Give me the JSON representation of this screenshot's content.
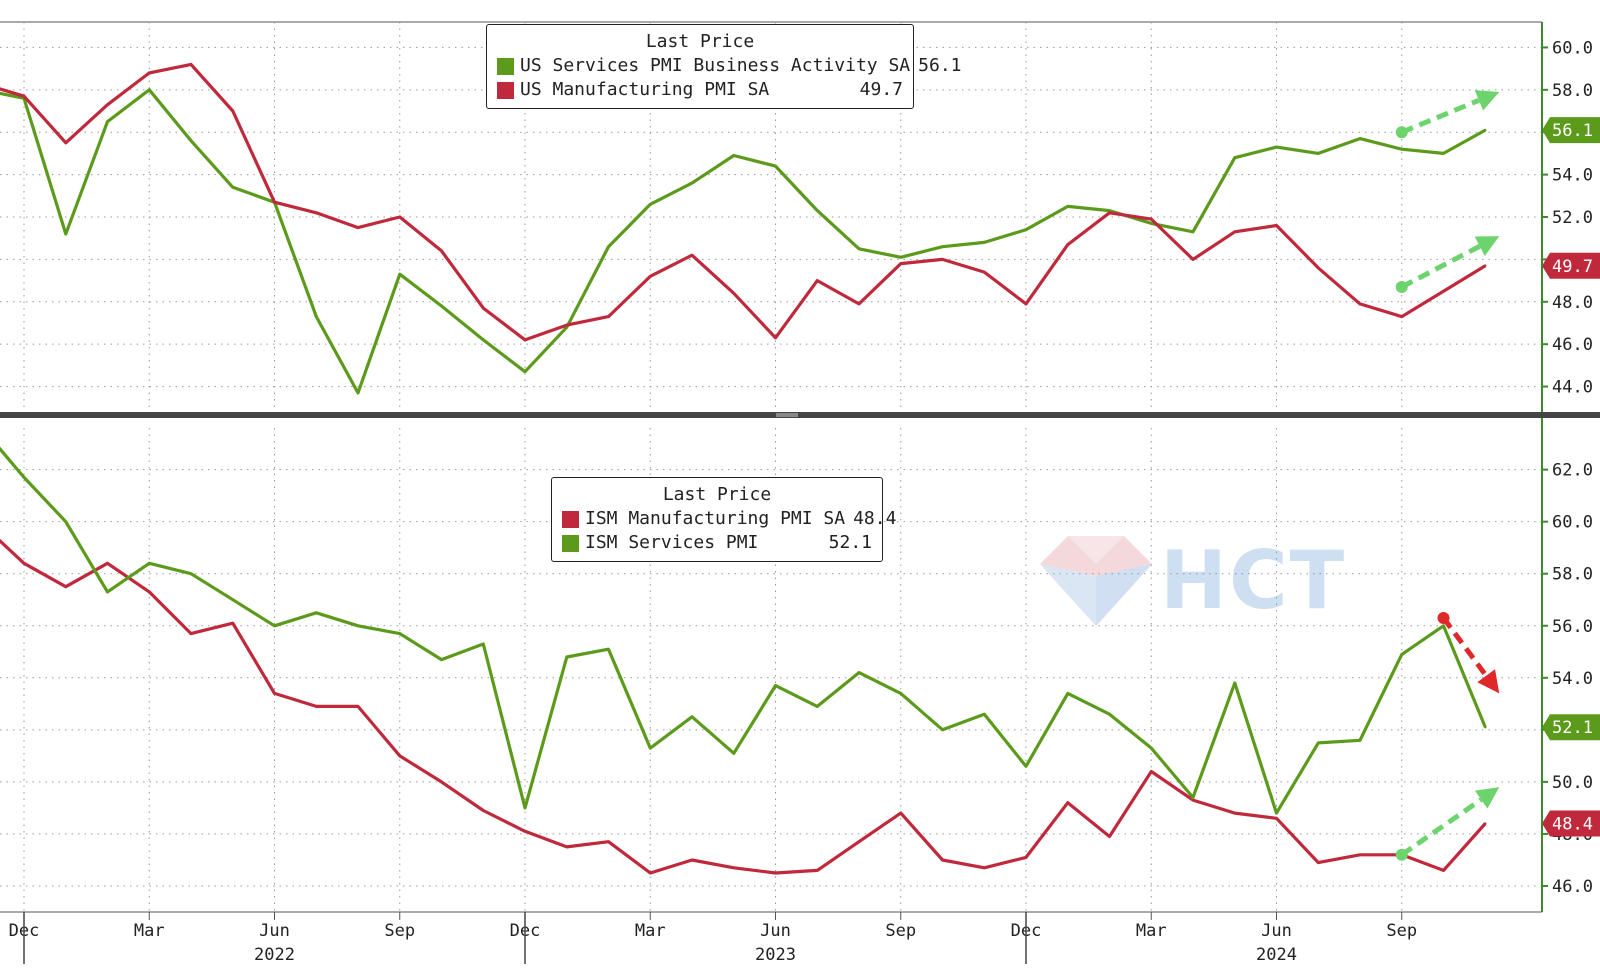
{
  "colors": {
    "green": "#5b9a1a",
    "red": "#c0283c",
    "arrow_green": "#6dd36d",
    "arrow_red": "#e0282a",
    "grid": "#9a9a9a",
    "axis": "#3c8a2c",
    "divider": "#444444"
  },
  "x_axis": {
    "months": [
      "Dec",
      "Mar",
      "Jun",
      "Sep",
      "Dec",
      "Mar",
      "Jun",
      "Sep",
      "Dec",
      "Mar",
      "Jun",
      "Sep"
    ],
    "years": [
      "2022",
      "2023",
      "2024"
    ]
  },
  "watermark": {
    "text": "HCT",
    "icon": "diamond-logo-icon"
  },
  "chart_data": [
    {
      "type": "line",
      "x_unit": "month",
      "x": [
        "2021-11",
        "2021-12",
        "2022-01",
        "2022-02",
        "2022-03",
        "2022-04",
        "2022-05",
        "2022-06",
        "2022-07",
        "2022-08",
        "2022-09",
        "2022-10",
        "2022-11",
        "2022-12",
        "2023-01",
        "2023-02",
        "2023-03",
        "2023-04",
        "2023-05",
        "2023-06",
        "2023-07",
        "2023-08",
        "2023-09",
        "2023-10",
        "2023-11",
        "2023-12",
        "2024-01",
        "2024-02",
        "2024-03",
        "2024-04",
        "2024-05",
        "2024-06",
        "2024-07",
        "2024-08",
        "2024-09",
        "2024-10",
        "2024-11"
      ],
      "series": [
        {
          "name": "US Services PMI Business Activity SA",
          "color_key": "green",
          "values": [
            58.0,
            57.6,
            51.2,
            56.5,
            58.0,
            55.6,
            53.4,
            52.7,
            47.3,
            43.7,
            49.3,
            47.8,
            46.2,
            44.7,
            46.8,
            50.6,
            52.6,
            53.6,
            54.9,
            54.4,
            52.3,
            50.5,
            50.1,
            50.6,
            50.8,
            51.4,
            52.5,
            52.3,
            51.7,
            51.3,
            54.8,
            55.3,
            55.0,
            55.7,
            55.2,
            55.0,
            56.1
          ],
          "last_price": "56.1"
        },
        {
          "name": "US Manufacturing PMI SA",
          "color_key": "red",
          "values": [
            58.3,
            57.7,
            55.5,
            57.3,
            58.8,
            59.2,
            57.0,
            52.7,
            52.2,
            51.5,
            52.0,
            50.4,
            47.7,
            46.2,
            46.9,
            47.3,
            49.2,
            50.2,
            48.4,
            46.3,
            49.0,
            47.9,
            49.8,
            50.0,
            49.4,
            47.9,
            50.7,
            52.2,
            51.9,
            50.0,
            51.3,
            51.6,
            49.6,
            47.9,
            47.3,
            48.5,
            49.7
          ],
          "last_price": "49.7"
        }
      ],
      "y_ticks": [
        "44.0",
        "46.0",
        "48.0",
        "50.0",
        "52.0",
        "54.0",
        "56.0",
        "58.0",
        "60.0"
      ],
      "ylim": [
        42.8,
        61.2
      ],
      "legend": {
        "title": "Last Price",
        "placement": "top-center",
        "entries": [
          {
            "label": "US Services PMI Business Activity SA",
            "value": "56.1",
            "color_key": "green"
          },
          {
            "label": "US Manufacturing PMI SA",
            "value": "49.7",
            "color_key": "red"
          }
        ]
      },
      "end_badges": [
        {
          "text": "56.1",
          "color_key": "green",
          "y": 56.1
        },
        {
          "text": "49.7",
          "color_key": "red",
          "y": 49.7
        }
      ],
      "annotations": [
        {
          "shape": "dashed-arrow",
          "color_key": "arrow_green",
          "from": [
            "2024-09",
            56.0
          ],
          "to": [
            "2024-11",
            57.9
          ]
        },
        {
          "shape": "dashed-arrow",
          "color_key": "arrow_green",
          "from": [
            "2024-09",
            48.7
          ],
          "to": [
            "2024-11",
            51.1
          ]
        }
      ]
    },
    {
      "type": "line",
      "x_unit": "month",
      "x": [
        "2021-11",
        "2021-12",
        "2022-01",
        "2022-02",
        "2022-03",
        "2022-04",
        "2022-05",
        "2022-06",
        "2022-07",
        "2022-08",
        "2022-09",
        "2022-10",
        "2022-11",
        "2022-12",
        "2023-01",
        "2023-02",
        "2023-03",
        "2023-04",
        "2023-05",
        "2023-06",
        "2023-07",
        "2023-08",
        "2023-09",
        "2023-10",
        "2023-11",
        "2023-12",
        "2024-01",
        "2024-02",
        "2024-03",
        "2024-04",
        "2024-05",
        "2024-06",
        "2024-07",
        "2024-08",
        "2024-09",
        "2024-10",
        "2024-11"
      ],
      "series": [
        {
          "name": "ISM Manufacturing PMI SA",
          "color_key": "red",
          "values": [
            59.9,
            58.4,
            57.5,
            58.4,
            57.3,
            55.7,
            56.1,
            53.4,
            52.9,
            52.9,
            51.0,
            50.0,
            48.9,
            48.1,
            47.5,
            47.7,
            46.5,
            47.0,
            46.7,
            46.5,
            46.6,
            47.7,
            48.8,
            47.0,
            46.7,
            47.1,
            49.2,
            47.9,
            50.4,
            49.3,
            48.8,
            48.6,
            46.9,
            47.2,
            47.2,
            46.6,
            48.4
          ],
          "last_price": "48.4"
        },
        {
          "name": "ISM Services PMI",
          "color_key": "green",
          "values": [
            63.6,
            61.7,
            60.0,
            57.3,
            58.4,
            58.0,
            57.0,
            56.0,
            56.5,
            56.0,
            55.7,
            54.7,
            55.3,
            49.0,
            54.8,
            55.1,
            51.3,
            52.5,
            51.1,
            53.7,
            52.9,
            54.2,
            53.4,
            52.0,
            52.6,
            50.6,
            53.4,
            52.6,
            51.3,
            49.4,
            53.8,
            48.8,
            51.5,
            51.6,
            54.9,
            56.0,
            52.1
          ],
          "last_price": "52.1"
        }
      ],
      "y_ticks": [
        "46.0",
        "48.0",
        "50.0",
        "52.0",
        "54.0",
        "56.0",
        "58.0",
        "60.0",
        "62.0"
      ],
      "ylim": [
        45.0,
        63.6
      ],
      "legend": {
        "title": "Last Price",
        "placement": "top-center",
        "entries": [
          {
            "label": "ISM Manufacturing PMI SA",
            "value": "48.4",
            "color_key": "red"
          },
          {
            "label": "ISM Services PMI",
            "value": "52.1",
            "color_key": "green"
          }
        ]
      },
      "end_badges": [
        {
          "text": "52.1",
          "color_key": "green",
          "y": 52.1
        },
        {
          "text": "48.4",
          "color_key": "red",
          "y": 48.4
        }
      ],
      "annotations": [
        {
          "shape": "dashed-arrow",
          "color_key": "arrow_red",
          "from": [
            "2024-10",
            56.3
          ],
          "to": [
            "2024-11",
            53.4
          ]
        },
        {
          "shape": "dashed-arrow",
          "color_key": "arrow_green",
          "from": [
            "2024-09",
            47.2
          ],
          "to": [
            "2024-11",
            49.8
          ]
        }
      ]
    }
  ]
}
